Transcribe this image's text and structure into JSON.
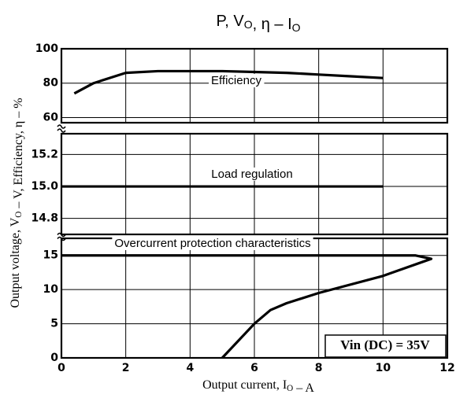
{
  "chart_data": {
    "type": "line",
    "title": [
      "P, V",
      {
        "sub": "O"
      },
      ", η – I",
      {
        "sub": "O"
      }
    ],
    "xlabel": [
      "Output current, I",
      {
        "sub": "O"
      },
      " – A"
    ],
    "ylabel": [
      "Output voltage, V",
      {
        "sub": "O"
      },
      " – V, Efficiency, η – %"
    ],
    "xlim": [
      0,
      12
    ],
    "xticks": [
      0,
      2,
      4,
      6,
      8,
      10,
      12
    ],
    "grid": true,
    "annotation": "Vin (DC) = 35V",
    "panels": [
      {
        "ylim": [
          57,
          100
        ],
        "yticks": [
          60,
          80,
          100
        ],
        "series": [
          {
            "name": "Efficiency",
            "color": "#000000",
            "x": [
              0.4,
              1,
              2,
              3,
              4,
              5,
              6,
              7,
              8,
              9,
              10
            ],
            "values": [
              74,
              80,
              86,
              87,
              87,
              87,
              86.5,
              86,
              85,
              84,
              83
            ]
          }
        ]
      },
      {
        "ylim": [
          14.7,
          15.33
        ],
        "yticks": [
          14.8,
          {
            "value": 15,
            "label": "15.0"
          },
          15.2
        ],
        "series": [
          {
            "name": "Load regulation",
            "color": "#000000",
            "x": [
              0,
              10
            ],
            "values": [
              15,
              15
            ]
          }
        ]
      },
      {
        "ylim": [
          0,
          17.5
        ],
        "yticks": [
          0,
          5,
          10,
          15
        ],
        "series": [
          {
            "name": "Overcurrent protection characteristics",
            "color": "#000000",
            "x": [
              0,
              11,
              11.5,
              10,
              8,
              7,
              6.5,
              6,
              5
            ],
            "values": [
              15,
              15,
              14.5,
              12,
              9.5,
              8,
              7,
              5,
              0
            ]
          }
        ]
      }
    ]
  }
}
